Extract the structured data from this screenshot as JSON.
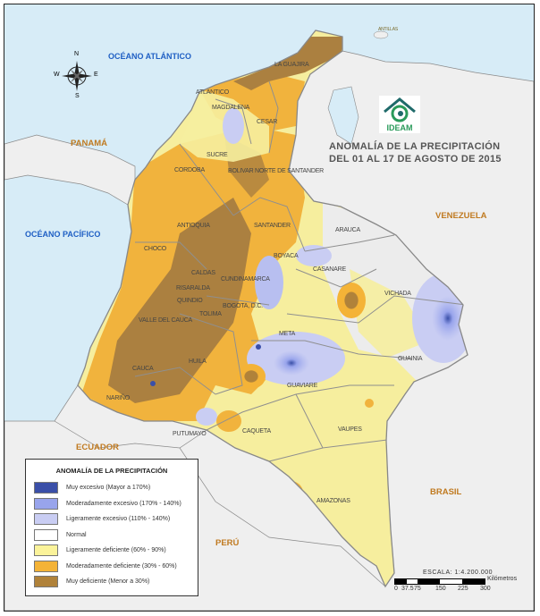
{
  "title": {
    "line1": "ANOMALÍA DE LA PRECIPITACIÓN",
    "line2": "DEL 01 AL 17 DE AGOSTO DE 2015"
  },
  "logo": {
    "text": "IDEAM"
  },
  "oceans": [
    "OCÉANO ATLÁNTICO",
    "OCÉANO PACÍFICO"
  ],
  "countries": [
    "PANAMÁ",
    "VENEZUELA",
    "ECUADOR",
    "PERÚ",
    "BRASIL"
  ],
  "other_labels": {
    "antillas": "ANTILLAS"
  },
  "departments": [
    "LA GUAJIRA",
    "ATLANTICO",
    "MAGDALENA",
    "CESAR",
    "SUCRE",
    "CORDOBA",
    "BOLIVAR",
    "NORTE DE SANTANDER",
    "ANTIOQUIA",
    "SANTANDER",
    "ARAUCA",
    "CHOCO",
    "BOYACA",
    "CASANARE",
    "CALDAS",
    "CUNDINAMARCA",
    "RISARALDA",
    "QUINDIO",
    "BOGOTA, D.C.",
    "TOLIMA",
    "VALLE DEL CAUCA",
    "VICHADA",
    "META",
    "HUILA",
    "GUAINIA",
    "CAUCA",
    "GUAVIARE",
    "NARIÑO",
    "PUTUMAYO",
    "CAQUETA",
    "VAUPES",
    "AMAZONAS"
  ],
  "compass": {
    "n": "N",
    "s": "S",
    "e": "E",
    "w": "W"
  },
  "legend": {
    "title": "ANOMALÍA DE LA PRECIPITACIÓN",
    "items": [
      {
        "label": "Muy excesivo (Mayor a 170%)",
        "color": "#3a4fa8"
      },
      {
        "label": "Moderadamente excesivo (170% - 140%)",
        "color": "#98a4ec"
      },
      {
        "label": "Ligeramente excesivo (110% - 140%)",
        "color": "#c9cdf3"
      },
      {
        "label": "Normal",
        "color": "#ffffff"
      },
      {
        "label": "Ligeramente deficiente (60% - 90%)",
        "color": "#fbf39a"
      },
      {
        "label": "Moderadamente deficiente (30% - 60%)",
        "color": "#f4b337"
      },
      {
        "label": "Muy deficiente (Menor a 30%)",
        "color": "#b0823a"
      }
    ]
  },
  "scale": {
    "title": "ESCALA: 1:4.200.000",
    "ticks": [
      "0",
      "37.5",
      "75",
      "150",
      "225",
      "300"
    ],
    "unit": "Kilómetros"
  },
  "colors": {
    "sea": "#d7ecf7",
    "neighbor_land": "#efefef",
    "border": "#8a8a8a"
  }
}
